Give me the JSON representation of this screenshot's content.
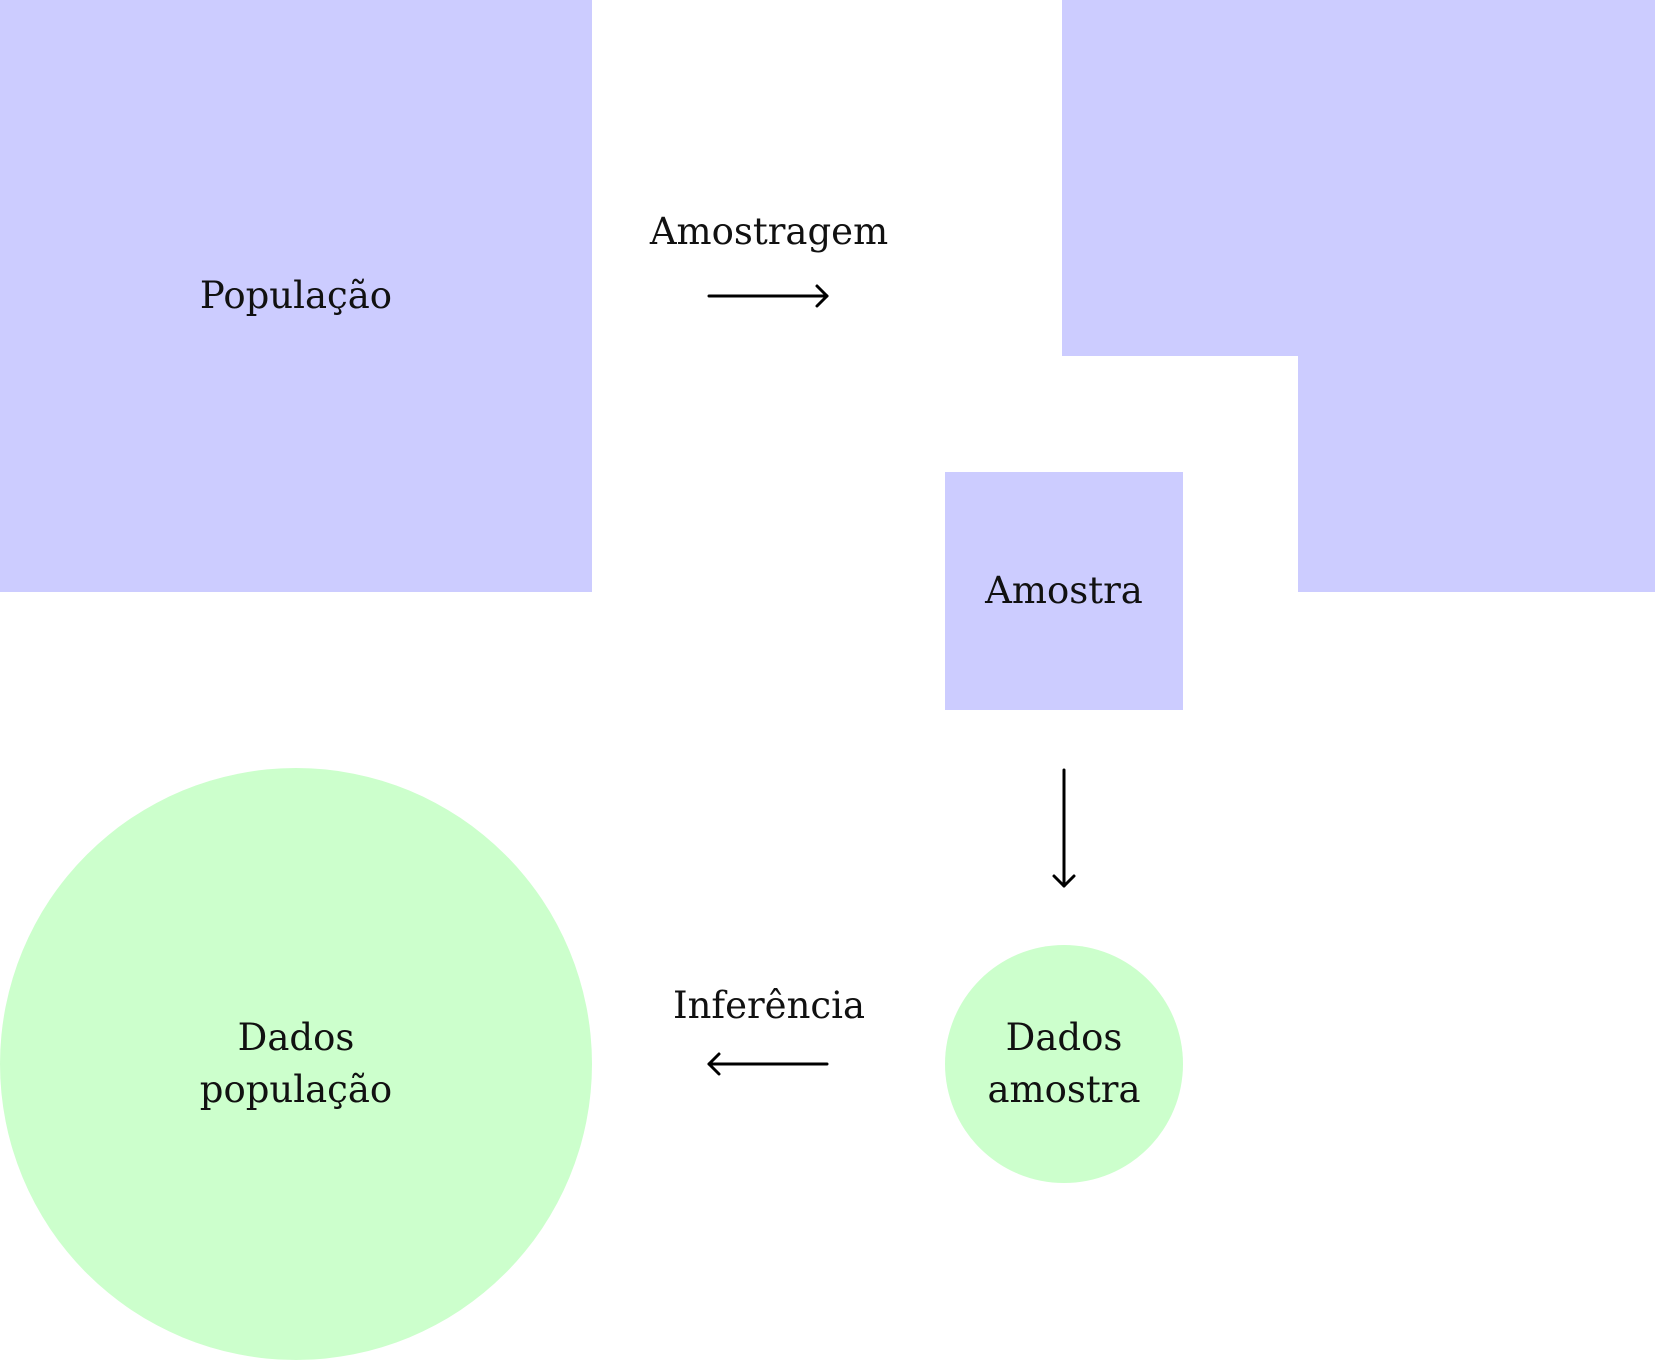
{
  "colors": {
    "box_fill": "#ccccff",
    "circle_fill": "#ccffcc",
    "arrow": "#000000"
  },
  "nodes": {
    "populacao": {
      "label": "População"
    },
    "amostra": {
      "label": "Amostra"
    },
    "dados_populacao": {
      "label": "Dados\npopulação"
    },
    "dados_amostra": {
      "label": "Dados\namostra"
    }
  },
  "edges": {
    "amostragem": {
      "label": "Amostragem"
    },
    "inferencia": {
      "label": "Inferência"
    }
  }
}
